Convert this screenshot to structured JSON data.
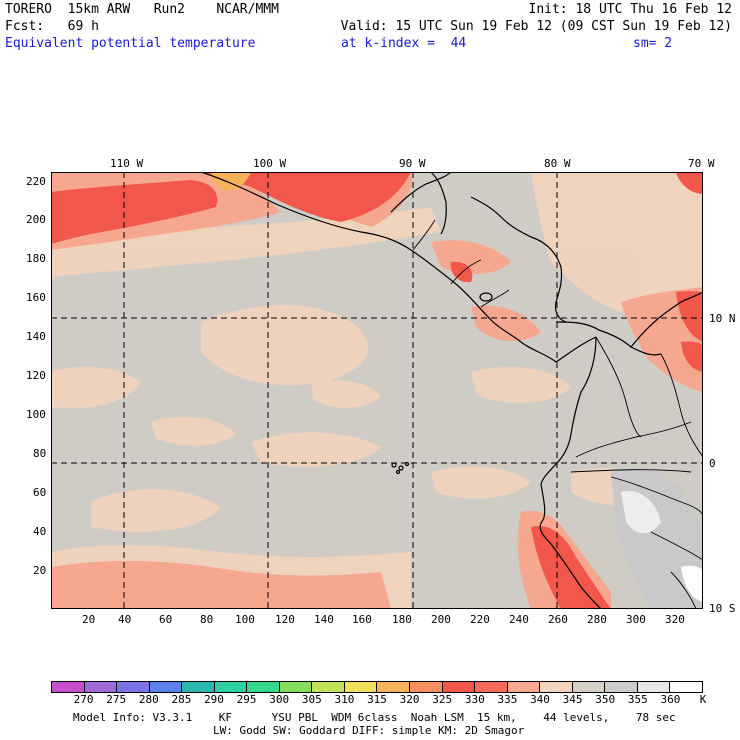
{
  "header": {
    "line1_left": "TORERO  15km ARW   Run2    NCAR/MMM",
    "line1_right": "Init: 18 UTC Thu 16 Feb 12",
    "line2_left": "Fcst:   69 h",
    "line2_right": "Valid: 15 UTC Sun 19 Feb 12 (09 CST Sun 19 Feb 12)",
    "field_name": "Equivalent potential temperature",
    "field_level": "at k-index =  44",
    "smoothing": "sm= 2"
  },
  "map": {
    "top_axis_labels": [
      "110 W",
      "100 W",
      "90 W",
      "80 W",
      "70 W"
    ],
    "right_axis_labels": [
      "10 N",
      "0",
      "10 S"
    ],
    "left_axis_labels": [
      "220",
      "200",
      "180",
      "160",
      "140",
      "120",
      "100",
      "80",
      "60",
      "40",
      "20"
    ],
    "bottom_axis_labels": [
      "20",
      "40",
      "60",
      "80",
      "100",
      "120",
      "140",
      "160",
      "180",
      "200",
      "220",
      "240",
      "260",
      "280",
      "300",
      "320"
    ],
    "background_value_color": "#cfcbc5",
    "land_outline_color": "#000000"
  },
  "colorbar": {
    "unit": "K",
    "levels": [
      "270",
      "275",
      "280",
      "285",
      "290",
      "295",
      "300",
      "305",
      "310",
      "315",
      "320",
      "325",
      "330",
      "335",
      "340",
      "345",
      "350",
      "355",
      "360"
    ],
    "colors": [
      "#c64fcc",
      "#9f6bd8",
      "#7a74e6",
      "#5b82ec",
      "#2ab8b0",
      "#2ed0a4",
      "#35d98c",
      "#86dd5a",
      "#c0e35a",
      "#f2e05a",
      "#f7b35b",
      "#f68f5e",
      "#f2574c",
      "#f56a5a",
      "#f7a891",
      "#f4d4bd",
      "#d5cfc8",
      "#cccccc",
      "#e6e6e6",
      "#ffffff"
    ]
  },
  "footer": {
    "line1": "Model Info: V3.3.1    KF      YSU PBL  WDM 6class  Noah LSM  15 km,    44 levels,    78 sec",
    "line2": "LW: Godd SW: Goddard DIFF: simple KM: 2D Smagor"
  }
}
